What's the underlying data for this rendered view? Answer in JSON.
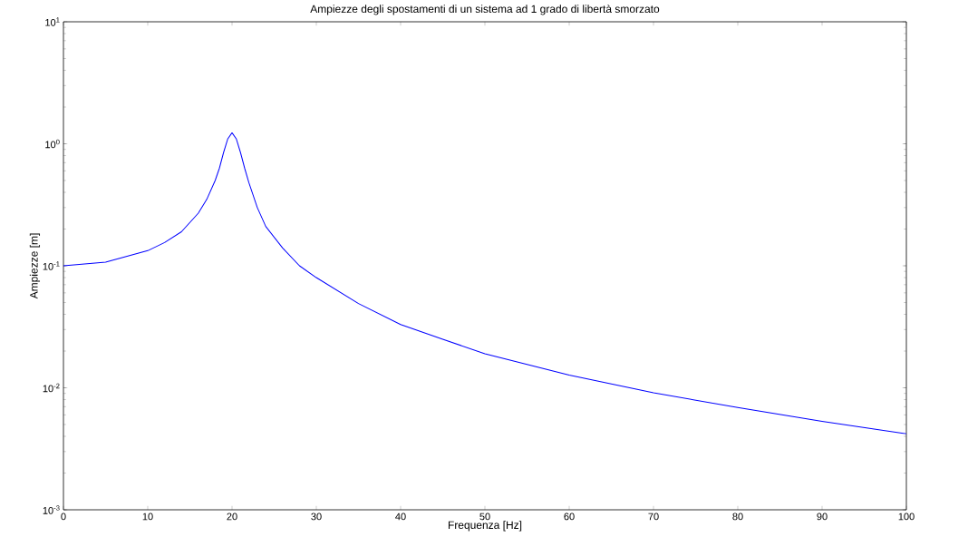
{
  "chart_data": {
    "type": "line",
    "title": "Ampiezze degli spostamenti di un sistema ad 1 grado di libertà smorzato",
    "xlabel": "Frequenza [Hz]",
    "ylabel": "Ampiezze [m]",
    "log": "y",
    "xlim": [
      0,
      100
    ],
    "ylim": [
      0.001,
      10
    ],
    "xticks": [
      0,
      10,
      20,
      30,
      40,
      50,
      60,
      70,
      80,
      90,
      100
    ],
    "yticks": [
      {
        "value": 0.001,
        "label": "10$^{-3}$"
      },
      {
        "value": 0.01,
        "label": "10$^{-2}$"
      },
      {
        "value": 0.1,
        "label": "10$^{-1}$"
      },
      {
        "value": 1,
        "label": "10$^{0}$"
      },
      {
        "value": 10,
        "label": "10$^{1}$"
      }
    ],
    "grid": false,
    "marker": "none",
    "line_style": "solid",
    "series": [
      {
        "color": "#0000ff",
        "x": [
          0,
          5,
          10,
          12,
          14,
          16,
          17,
          18,
          18.5,
          19,
          19.5,
          20,
          20.5,
          21,
          21.5,
          22,
          23,
          24,
          26,
          28,
          30,
          35,
          40,
          45,
          50,
          60,
          70,
          80,
          90,
          100
        ],
        "values": [
          0.1,
          0.107,
          0.133,
          0.155,
          0.19,
          0.27,
          0.35,
          0.5,
          0.63,
          0.85,
          1.1,
          1.23,
          1.1,
          0.85,
          0.63,
          0.48,
          0.3,
          0.21,
          0.14,
          0.1,
          0.08,
          0.049,
          0.033,
          0.025,
          0.019,
          0.0127,
          0.0091,
          0.0069,
          0.0053,
          0.0042
        ]
      }
    ]
  }
}
